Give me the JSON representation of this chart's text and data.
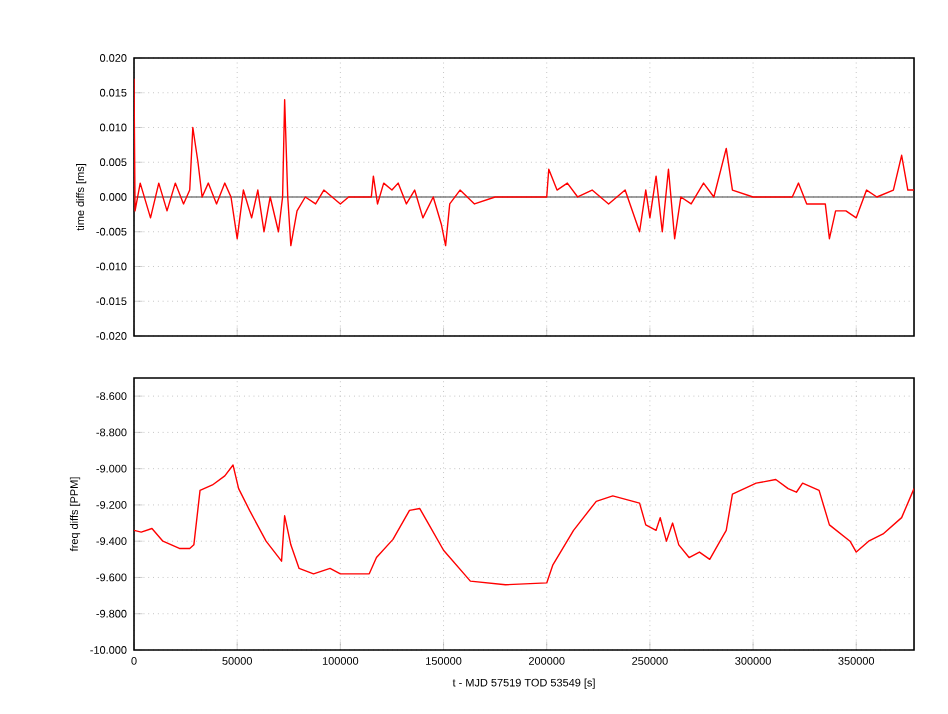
{
  "chart_data": [
    {
      "type": "line",
      "ylabel": "time diffs [ms]",
      "color": "#ff0000",
      "grid": true,
      "tick_labels": "y",
      "xlim": [
        0,
        378000
      ],
      "ylim": [
        -0.02,
        0.02
      ],
      "xticks": [
        0,
        50000,
        100000,
        150000,
        200000,
        250000,
        300000,
        350000
      ],
      "yticks": [
        {
          "value": -0.02,
          "label": "-0.020"
        },
        {
          "value": -0.015,
          "label": "-0.015"
        },
        {
          "value": -0.01,
          "label": "-0.010"
        },
        {
          "value": -0.005,
          "label": "-0.005"
        },
        {
          "value": 0,
          "label": "0.000"
        },
        {
          "value": 0.005,
          "label": "0.005"
        },
        {
          "value": 0.01,
          "label": "0.010"
        },
        {
          "value": 0.015,
          "label": "0.015"
        },
        {
          "value": 0.02,
          "label": "0.020"
        }
      ],
      "ref_lines": [
        {
          "axis": "y",
          "value": 0,
          "color": "#404040"
        }
      ],
      "x": [
        0,
        500,
        3000,
        8000,
        12000,
        16000,
        20000,
        24000,
        27000,
        28500,
        31000,
        33000,
        36000,
        40000,
        44000,
        47000,
        50000,
        53000,
        57000,
        60000,
        63000,
        66000,
        70000,
        72000,
        73000,
        74500,
        76000,
        79000,
        83000,
        88000,
        92000,
        96000,
        100000,
        104000,
        115000,
        116000,
        118000,
        121000,
        125000,
        128000,
        132000,
        136000,
        140000,
        145000,
        149000,
        151000,
        153000,
        158000,
        165000,
        175000,
        190000,
        200000,
        201000,
        205000,
        210000,
        215000,
        222000,
        230000,
        238000,
        245000,
        248000,
        250000,
        253000,
        256000,
        259000,
        262000,
        265000,
        270000,
        276000,
        281000,
        287000,
        290000,
        300000,
        310000,
        319000,
        322000,
        326000,
        335000,
        337000,
        340000,
        345000,
        350000,
        355000,
        360000,
        368000,
        372000,
        375000,
        378000
      ],
      "values": [
        0.017,
        -0.002,
        0.002,
        -0.003,
        0.002,
        -0.002,
        0.002,
        -0.001,
        0.001,
        0.01,
        0.005,
        0.0,
        0.002,
        -0.001,
        0.002,
        0.0,
        -0.006,
        0.001,
        -0.003,
        0.001,
        -0.005,
        0.0,
        -0.005,
        0.0,
        0.014,
        0.0,
        -0.007,
        -0.002,
        0.0,
        -0.001,
        0.001,
        0.0,
        -0.001,
        0.0,
        0.0,
        0.003,
        -0.001,
        0.002,
        0.001,
        0.002,
        -0.001,
        0.001,
        -0.003,
        0.0,
        -0.004,
        -0.007,
        -0.001,
        0.001,
        -0.001,
        0.0,
        0.0,
        0.0,
        0.004,
        0.001,
        0.002,
        0.0,
        0.001,
        -0.001,
        0.001,
        -0.005,
        0.001,
        -0.003,
        0.003,
        -0.005,
        0.004,
        -0.006,
        0.0,
        -0.001,
        0.002,
        0.0,
        0.007,
        0.001,
        0.0,
        0.0,
        0.0,
        0.002,
        -0.001,
        -0.001,
        -0.006,
        -0.002,
        -0.002,
        -0.003,
        0.001,
        0.0,
        0.001,
        0.006,
        0.001,
        0.001
      ]
    },
    {
      "type": "line",
      "ylabel": "freq diffs [PPM]",
      "xlabel": "t - MJD 57519 TOD 53549 [s]",
      "color": "#ff0000",
      "grid": true,
      "xlim": [
        0,
        378000
      ],
      "ylim": [
        -10.0,
        -8.5
      ],
      "xticks": [
        0,
        50000,
        100000,
        150000,
        200000,
        250000,
        300000,
        350000
      ],
      "yticks": [
        {
          "value": -10.0,
          "label": "-10.000"
        },
        {
          "value": -9.8,
          "label": "-9.800"
        },
        {
          "value": -9.6,
          "label": "-9.600"
        },
        {
          "value": -9.4,
          "label": "-9.400"
        },
        {
          "value": -9.2,
          "label": "-9.200"
        },
        {
          "value": -9.0,
          "label": "-9.000"
        },
        {
          "value": -8.8,
          "label": "-8.800"
        },
        {
          "value": -8.6,
          "label": "-8.600"
        }
      ],
      "x": [
        0,
        3500,
        8700,
        14000,
        22000,
        27000,
        29000,
        32000,
        38000,
        44000,
        48000,
        50700,
        56000,
        64000,
        71500,
        73000,
        76000,
        80000,
        87000,
        95000,
        100000,
        114000,
        117500,
        125500,
        133500,
        138500,
        143000,
        150000,
        163000,
        180000,
        200000,
        203000,
        213000,
        224000,
        232000,
        245000,
        248000,
        253000,
        255000,
        258000,
        261000,
        264000,
        269000,
        274000,
        279000,
        284000,
        287000,
        290000,
        301500,
        311000,
        317000,
        321000,
        324000,
        332000,
        337000,
        347000,
        350000,
        356000,
        363000,
        372000,
        378000
      ],
      "values": [
        -9.34,
        -9.35,
        -9.33,
        -9.4,
        -9.44,
        -9.44,
        -9.42,
        -9.12,
        -9.09,
        -9.04,
        -8.98,
        -9.11,
        -9.23,
        -9.4,
        -9.51,
        -9.26,
        -9.42,
        -9.55,
        -9.58,
        -9.55,
        -9.58,
        -9.58,
        -9.49,
        -9.39,
        -9.23,
        -9.22,
        -9.31,
        -9.45,
        -9.62,
        -9.64,
        -9.63,
        -9.53,
        -9.34,
        -9.18,
        -9.15,
        -9.19,
        -9.31,
        -9.34,
        -9.27,
        -9.4,
        -9.3,
        -9.42,
        -9.49,
        -9.46,
        -9.5,
        -9.4,
        -9.34,
        -9.14,
        -9.08,
        -9.06,
        -9.11,
        -9.13,
        -9.08,
        -9.12,
        -9.31,
        -9.4,
        -9.46,
        -9.4,
        -9.36,
        -9.27,
        -9.11
      ]
    }
  ]
}
